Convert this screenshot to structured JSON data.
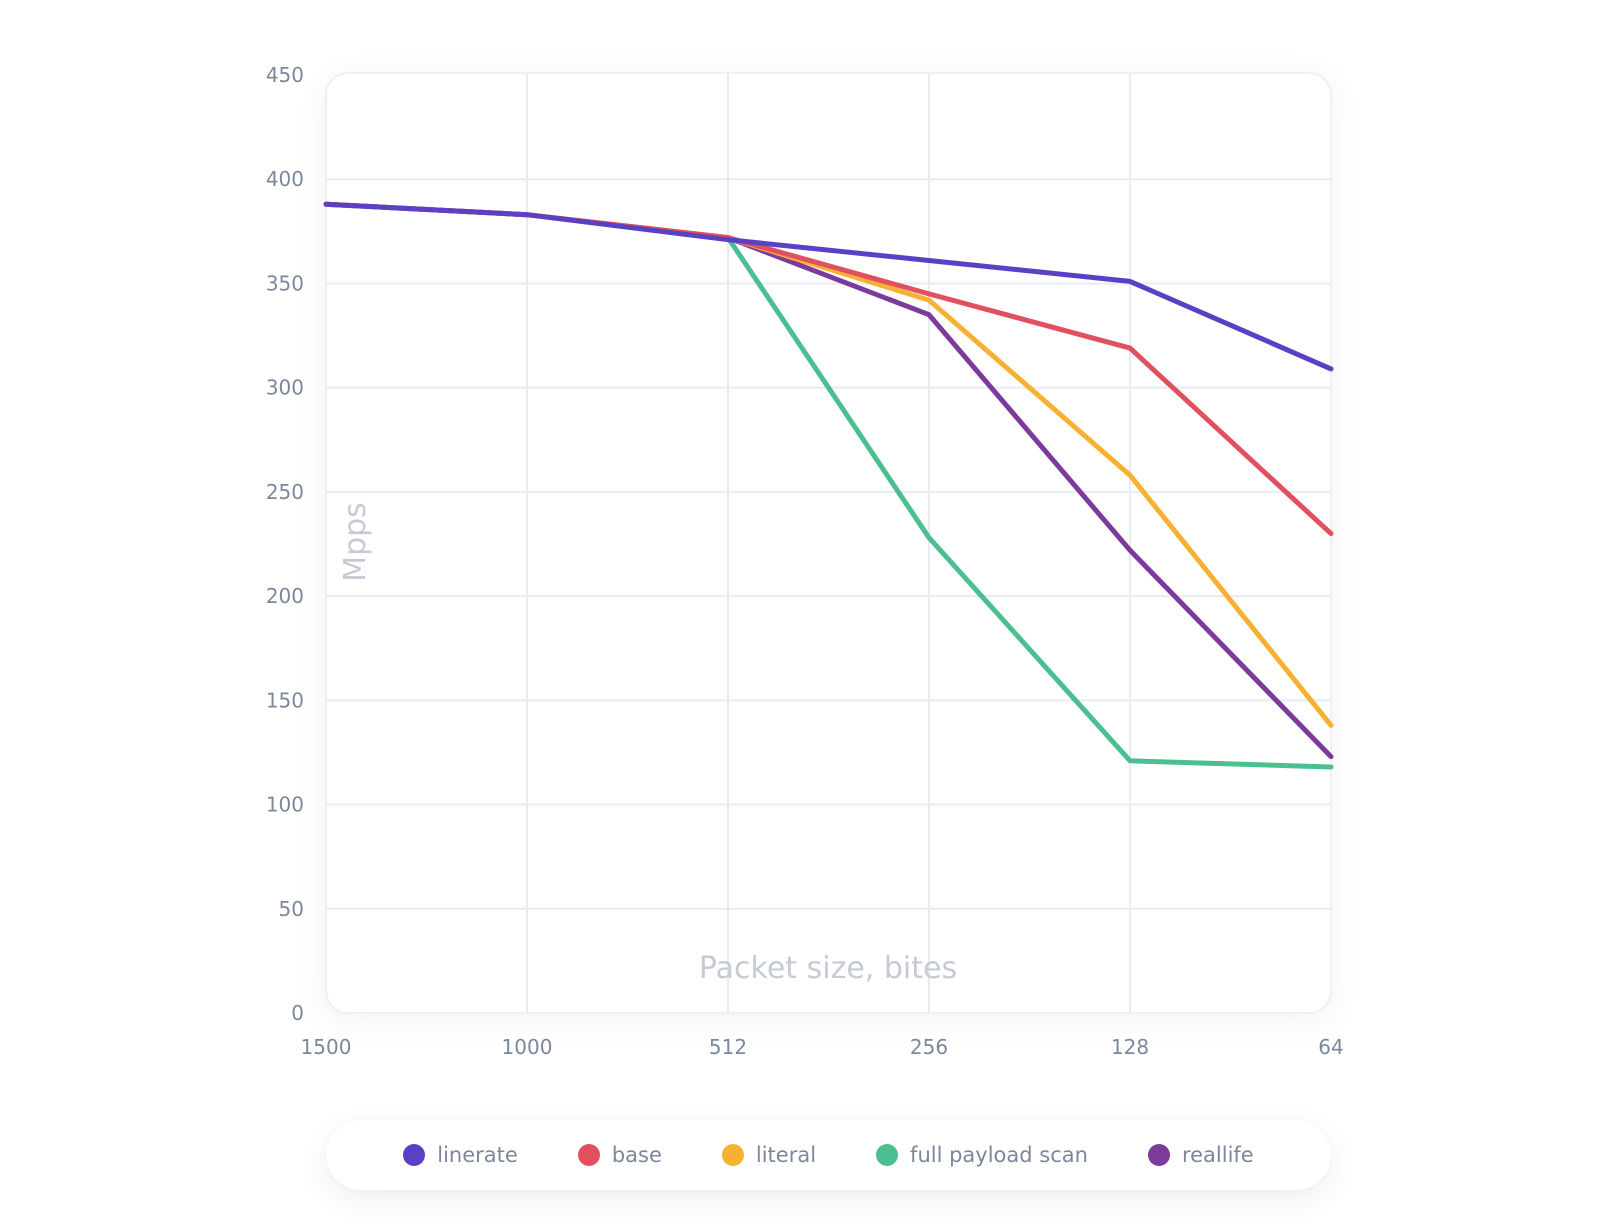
{
  "chart_data": {
    "type": "line",
    "categories": [
      "1500",
      "1000",
      "512",
      "256",
      "128",
      "64"
    ],
    "xlabel": "Packet size, bites",
    "ylabel": "Mpps",
    "ylim": [
      0,
      450
    ],
    "yticks": [
      0,
      50,
      100,
      150,
      200,
      250,
      300,
      350,
      400,
      450
    ],
    "grid": true,
    "legend_position": "bottom",
    "series": [
      {
        "name": "linerate",
        "color": "#5b3fc4",
        "values": [
          388,
          383,
          371,
          361,
          351,
          309
        ]
      },
      {
        "name": "base",
        "color": "#e0505e",
        "values": [
          388,
          383,
          372,
          345,
          319,
          230
        ]
      },
      {
        "name": "literal",
        "color": "#f6b132",
        "values": [
          388,
          383,
          372,
          342,
          258,
          138
        ]
      },
      {
        "name": "full payload scan",
        "color": "#4bbf8f",
        "values": [
          388,
          383,
          372,
          228,
          121,
          118
        ]
      },
      {
        "name": "reallife",
        "color": "#7b3a9c",
        "values": [
          388,
          383,
          372,
          335,
          222,
          123
        ]
      }
    ]
  }
}
